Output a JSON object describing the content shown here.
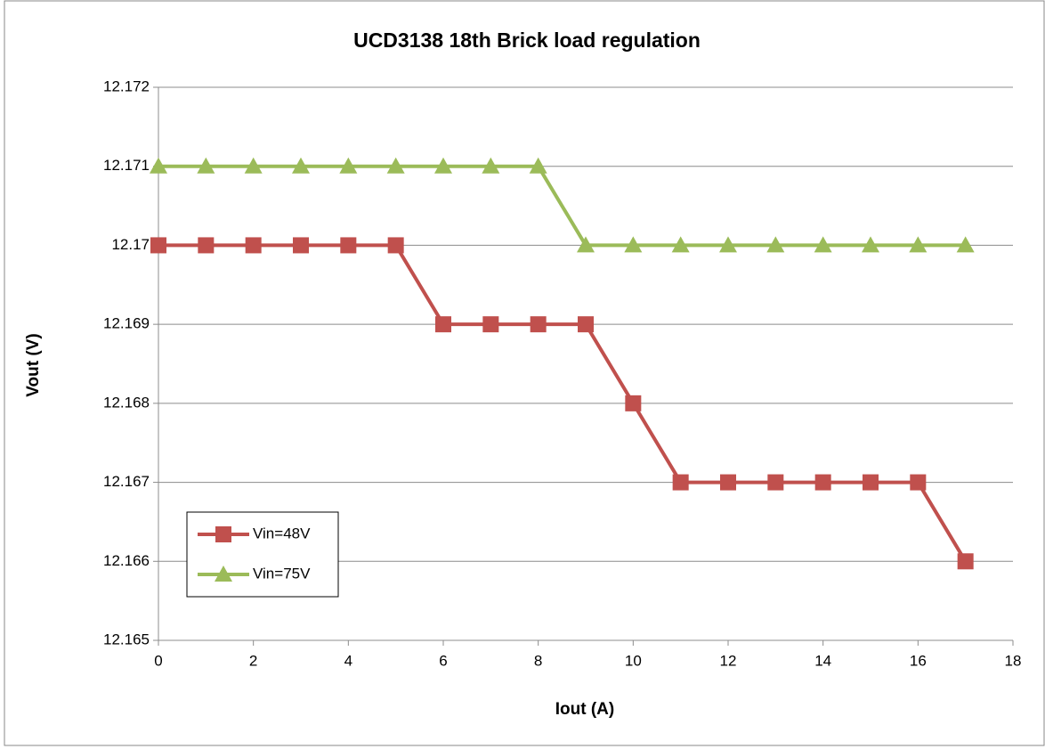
{
  "chart_data": {
    "type": "line",
    "title": "UCD3138 18th Brick load regulation",
    "x_label": "Iout (A)",
    "y_label": "Vout (V)",
    "x": [
      0,
      1,
      2,
      3,
      4,
      5,
      6,
      7,
      8,
      9,
      10,
      11,
      12,
      13,
      14,
      15,
      16,
      17
    ],
    "series": [
      {
        "name": "Vin=48V",
        "color": "#c0504d",
        "marker": "square",
        "values": [
          12.17,
          12.17,
          12.17,
          12.17,
          12.17,
          12.17,
          12.169,
          12.169,
          12.169,
          12.169,
          12.168,
          12.167,
          12.167,
          12.167,
          12.167,
          12.167,
          12.167,
          12.166
        ]
      },
      {
        "name": "Vin=75V",
        "color": "#9bbb59",
        "marker": "triangle",
        "values": [
          12.171,
          12.171,
          12.171,
          12.171,
          12.171,
          12.171,
          12.171,
          12.171,
          12.171,
          12.17,
          12.17,
          12.17,
          12.17,
          12.17,
          12.17,
          12.17,
          12.17,
          12.17
        ]
      }
    ],
    "xlim": [
      0,
      18
    ],
    "xticks": [
      0,
      2,
      4,
      6,
      8,
      10,
      12,
      14,
      16,
      18
    ],
    "ylim": [
      12.165,
      12.172
    ],
    "yticks": [
      12.165,
      12.166,
      12.167,
      12.168,
      12.169,
      12.17,
      12.171,
      12.172
    ],
    "grid": true,
    "legend": "lower left"
  }
}
